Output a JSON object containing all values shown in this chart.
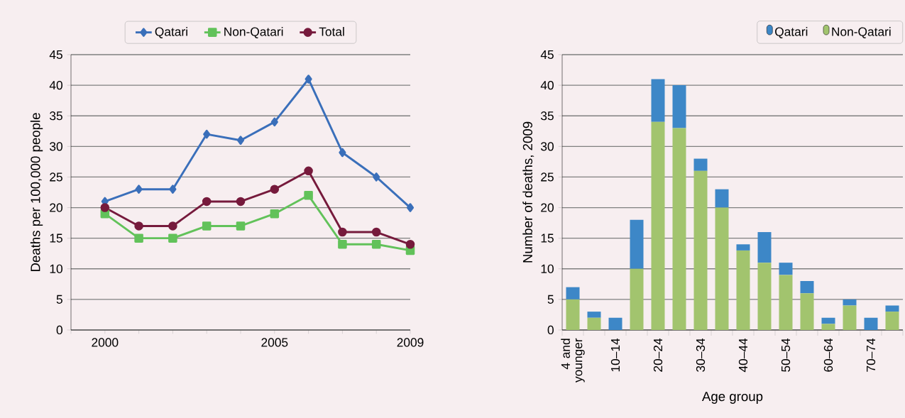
{
  "chart_data": [
    {
      "type": "line",
      "ylabel": "Deaths per 100,000 people",
      "x": [
        2000,
        2001,
        2002,
        2003,
        2004,
        2005,
        2006,
        2007,
        2008,
        2009
      ],
      "series": [
        {
          "name": "Qatari",
          "color": "#3a6fba",
          "marker": "diamond",
          "values": [
            21,
            23,
            23,
            32,
            31,
            34,
            41,
            29,
            25,
            20
          ]
        },
        {
          "name": "Non-Qatari",
          "color": "#62c25a",
          "marker": "square",
          "values": [
            19,
            15,
            15,
            17,
            17,
            19,
            22,
            14,
            14,
            13
          ]
        },
        {
          "name": "Total",
          "color": "#761a3c",
          "marker": "circle",
          "values": [
            20,
            17,
            17,
            21,
            21,
            23,
            26,
            16,
            16,
            14
          ]
        }
      ],
      "xlim": [
        1999,
        2009
      ],
      "ylim": [
        0,
        45
      ],
      "xticks": [
        {
          "value": 1999,
          "label": null
        },
        2000,
        {
          "value": 2001,
          "label": null
        },
        {
          "value": 2002,
          "label": null
        },
        {
          "value": 2003,
          "label": null
        },
        {
          "value": 2004,
          "label": null
        },
        2005,
        {
          "value": 2006,
          "label": null
        },
        {
          "value": 2007,
          "label": null
        },
        {
          "value": 2008,
          "label": null
        },
        2009
      ],
      "yticks": [
        0,
        5,
        10,
        15,
        20,
        25,
        30,
        35,
        40,
        45
      ],
      "grid": "y",
      "legend": "top"
    },
    {
      "type": "bar",
      "stacked": true,
      "xlabel": "Age group",
      "ylabel": "Number of deaths, 2009",
      "categories": [
        "4 and younger",
        null,
        "10–14",
        null,
        "20–24",
        null,
        "30–34",
        null,
        "40–44",
        null,
        "50–54",
        null,
        "60–64",
        null,
        "70–74",
        null
      ],
      "series": [
        {
          "name": "Non-Qatari",
          "color": "#a2c46e",
          "values": [
            5,
            2,
            0,
            10,
            34,
            33,
            26,
            20,
            13,
            11,
            9,
            6,
            1,
            4,
            0,
            3
          ]
        },
        {
          "name": "Qatari",
          "color": "#3d87c7",
          "values": [
            2,
            1,
            2,
            8,
            7,
            7,
            2,
            3,
            1,
            5,
            2,
            2,
            1,
            1,
            2,
            1
          ]
        }
      ],
      "ylim": [
        0,
        45
      ],
      "yticks": [
        0,
        5,
        10,
        15,
        20,
        25,
        30,
        35,
        40,
        45
      ],
      "grid": "y",
      "legend": "top right"
    }
  ]
}
